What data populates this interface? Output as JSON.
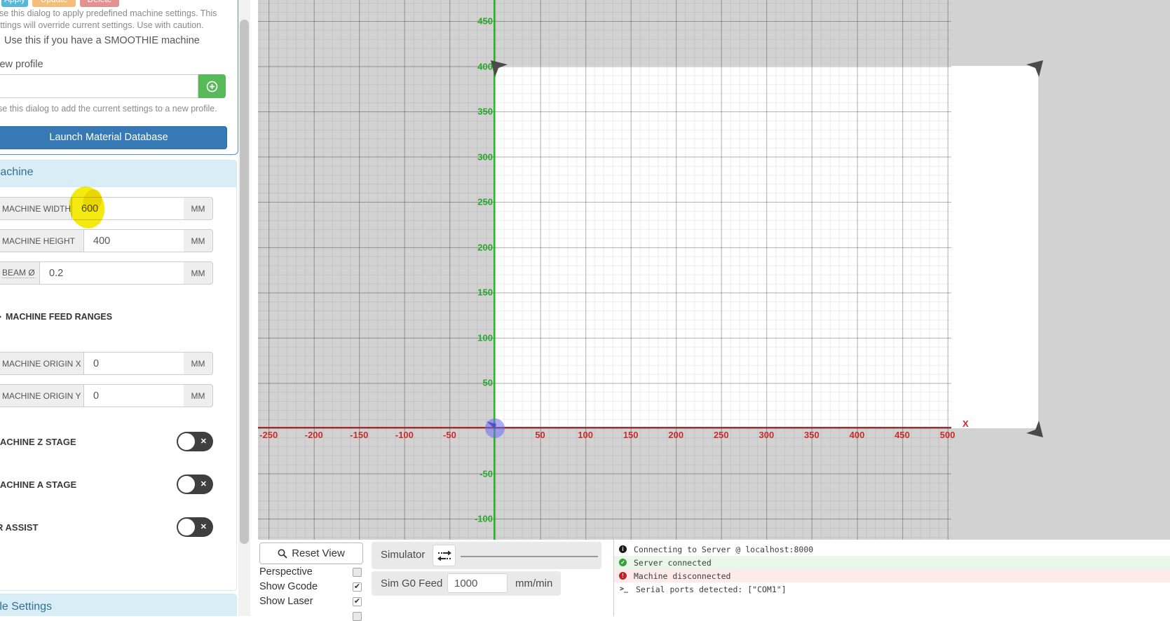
{
  "profile_panel": {
    "apply_label": "Apply",
    "update_label": "Update",
    "delete_label": "Delete",
    "help_apply_line1": "Use this dialog to apply predefined machine settings. This",
    "help_apply_line2": "settings will override current settings. Use with caution.",
    "smoothie_note": "Use this if you have a SMOOTHIE machine",
    "new_profile_label": "New profile",
    "profile_input_value": "",
    "help_add": "Use this dialog to add the current settings to a new profile.",
    "launch_material_db_label": "Launch Material Database"
  },
  "machine_panel": {
    "title": "Machine",
    "feed_ranges_label": "MACHINE FEED RANGES",
    "fields": [
      {
        "label": "MACHINE WIDTH",
        "value": "600",
        "unit": "MM",
        "highlighted": true
      },
      {
        "label": "MACHINE HEIGHT",
        "value": "400",
        "unit": "MM",
        "highlighted": false
      },
      {
        "label": "BEAM Ø",
        "value": "0.2",
        "unit": "MM",
        "highlighted": false
      },
      {
        "label": "MACHINE ORIGIN X",
        "value": "0",
        "unit": "MM",
        "highlighted": false
      },
      {
        "label": "MACHINE ORIGIN Y",
        "value": "0",
        "unit": "MM",
        "highlighted": false
      }
    ],
    "toggles": [
      {
        "label": "MACHINE Z STAGE",
        "state": "off"
      },
      {
        "label": "MACHINE A STAGE",
        "state": "off"
      },
      {
        "label": "AIR ASSIST",
        "state": "off"
      }
    ]
  },
  "file_settings_panel": {
    "title": "File Settings"
  },
  "workspace": {
    "x_axis_name": "X",
    "x_tick_labels": [
      -250,
      -200,
      -150,
      -100,
      -50,
      50,
      100,
      150,
      200,
      250,
      300,
      350,
      400,
      450,
      500
    ],
    "y_tick_labels": [
      450,
      400,
      350,
      300,
      250,
      200,
      150,
      100,
      50,
      -50,
      -100
    ],
    "units_per_major_gridline": 50,
    "machine_bed": {
      "width_mm": 600,
      "height_mm": 400
    },
    "colors": {
      "x_axis": "#b42525",
      "y_axis": "#15c015",
      "x_labels": "#cc2a2a",
      "y_labels": "#28a828",
      "background": "#d2d2d2",
      "bed": "#ffffff",
      "highlight": "#f4ea0f"
    }
  },
  "viewport_controls": {
    "reset_view_label": "Reset View",
    "checkboxes": [
      {
        "label": "Perspective",
        "checked": false
      },
      {
        "label": "Show Gcode",
        "checked": true
      },
      {
        "label": "Show Laser",
        "checked": true
      }
    ]
  },
  "simulator": {
    "label": "Simulator",
    "feed_label": "Sim G0 Feed",
    "feed_value": "1000",
    "feed_unit": "mm/min"
  },
  "console": {
    "lines": [
      {
        "icon": "info-icon",
        "type": "info",
        "text": "Connecting to Server @ localhost:8000"
      },
      {
        "icon": "check-circle-icon",
        "type": "success",
        "text": "Server connected"
      },
      {
        "icon": "error-circle-icon",
        "type": "error",
        "text": "Machine disconnected"
      },
      {
        "icon": "terminal-prompt-icon",
        "type": "command",
        "text": "Serial ports detected: [\"COM1\"]"
      }
    ]
  }
}
